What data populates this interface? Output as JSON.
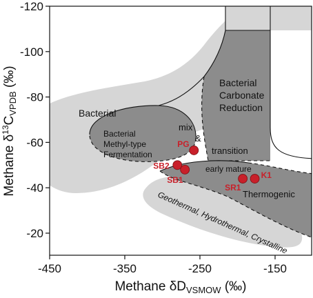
{
  "chart_data": {
    "type": "scatter",
    "xlabel": "Methane δD",
    "xlabel_sub": "VSMOW",
    "xlabel_unit": " (‰)",
    "ylabel": "Methane δ",
    "ylabel_sup": "13",
    "ylabel_mid": "C",
    "ylabel_sub": "VPDB",
    "ylabel_unit": " (‰)",
    "xlim": [
      -450,
      -100
    ],
    "ylim": [
      -120,
      -15
    ],
    "y_reversed": true,
    "x_ticks": [
      "-450",
      "-350",
      "-250",
      "-150"
    ],
    "y_ticks": [
      "-120",
      "-100",
      "-80",
      "-60",
      "-40",
      "-20"
    ],
    "grid": false,
    "points": [
      {
        "label": "PG",
        "x": -258,
        "y": -56.5
      },
      {
        "label": "SB2",
        "x": -280,
        "y": -50
      },
      {
        "label": "SB1",
        "x": -270,
        "y": -48
      },
      {
        "label": "SR1",
        "x": -193,
        "y": -44
      },
      {
        "label": "K1",
        "x": -177,
        "y": -44
      }
    ],
    "region_labels": {
      "bacterial": "Bacterial",
      "methyl_1": "Bacterial",
      "methyl_2": "Methyl-type",
      "methyl_3": "Fermentation",
      "carbonate_1": "Bacterial",
      "carbonate_2": "Carbonate",
      "carbonate_3": "Reduction",
      "mix": "mix",
      "amp": "&",
      "transition": "transition",
      "early_mature": "early mature",
      "thermogenic": "Thermogenic",
      "geothermal": "Geothermal, Hydrothermal, Crystalline"
    },
    "colors": {
      "light_region": "#d6d6d6",
      "dark_region": "#8c8c8c",
      "points": "#c8202a"
    }
  }
}
